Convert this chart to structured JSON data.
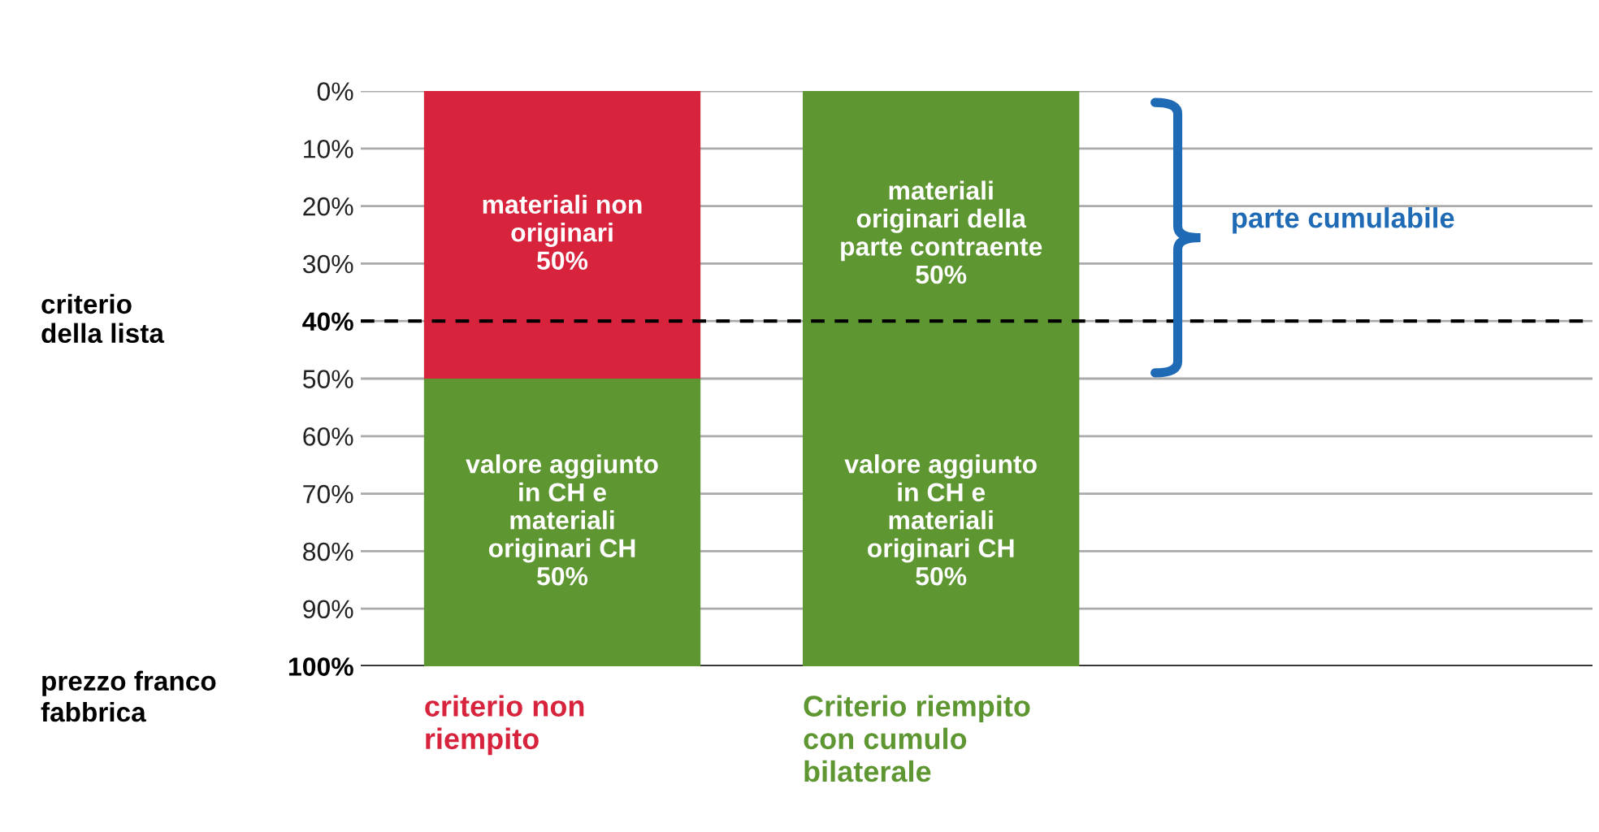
{
  "chart_data": {
    "type": "bar",
    "stacked": true,
    "categories": [
      "criterio non\nriempito",
      "Criterio riempito\ncon cumulo\nbilaterale"
    ],
    "series": [
      {
        "colors": [
          "#d7233c",
          "#5e9632"
        ],
        "values": [
          50,
          50
        ],
        "value_labels": [
          "materiali non\noriginari\n50%",
          "materiali\noriginari della\nparte contraente\n50%"
        ]
      },
      {
        "colors": [
          "#5e9632",
          "#5e9632"
        ],
        "values": [
          50,
          50
        ],
        "value_labels": [
          "valore aggiunto\nin CH e\nmateriali\noriginari CH\n50%",
          "valore aggiunto\nin CH e\nmateriali\noriginari CH\n50%"
        ]
      }
    ],
    "ylim": [
      100,
      0
    ],
    "yticks": [
      {
        "value": 0,
        "label": "0%"
      },
      {
        "value": 10,
        "label": "10%"
      },
      {
        "value": 20,
        "label": "20%"
      },
      {
        "value": 30,
        "label": "30%"
      },
      {
        "value": 40,
        "label": "40%"
      },
      {
        "value": 50,
        "label": "50%"
      },
      {
        "value": 60,
        "label": "60%"
      },
      {
        "value": 70,
        "label": "70%"
      },
      {
        "value": 80,
        "label": "80%"
      },
      {
        "value": 90,
        "label": "90%"
      },
      {
        "value": 100,
        "label": "100%"
      }
    ],
    "grid": "y",
    "ref_lines": [
      {
        "axis": "y",
        "value": 40,
        "label": "criterio\ndella lista",
        "color": "#000000",
        "line_style": "dashed"
      }
    ],
    "annotations": [
      "prezzo franco\nfabbrica",
      "parte cumulabile"
    ]
  }
}
